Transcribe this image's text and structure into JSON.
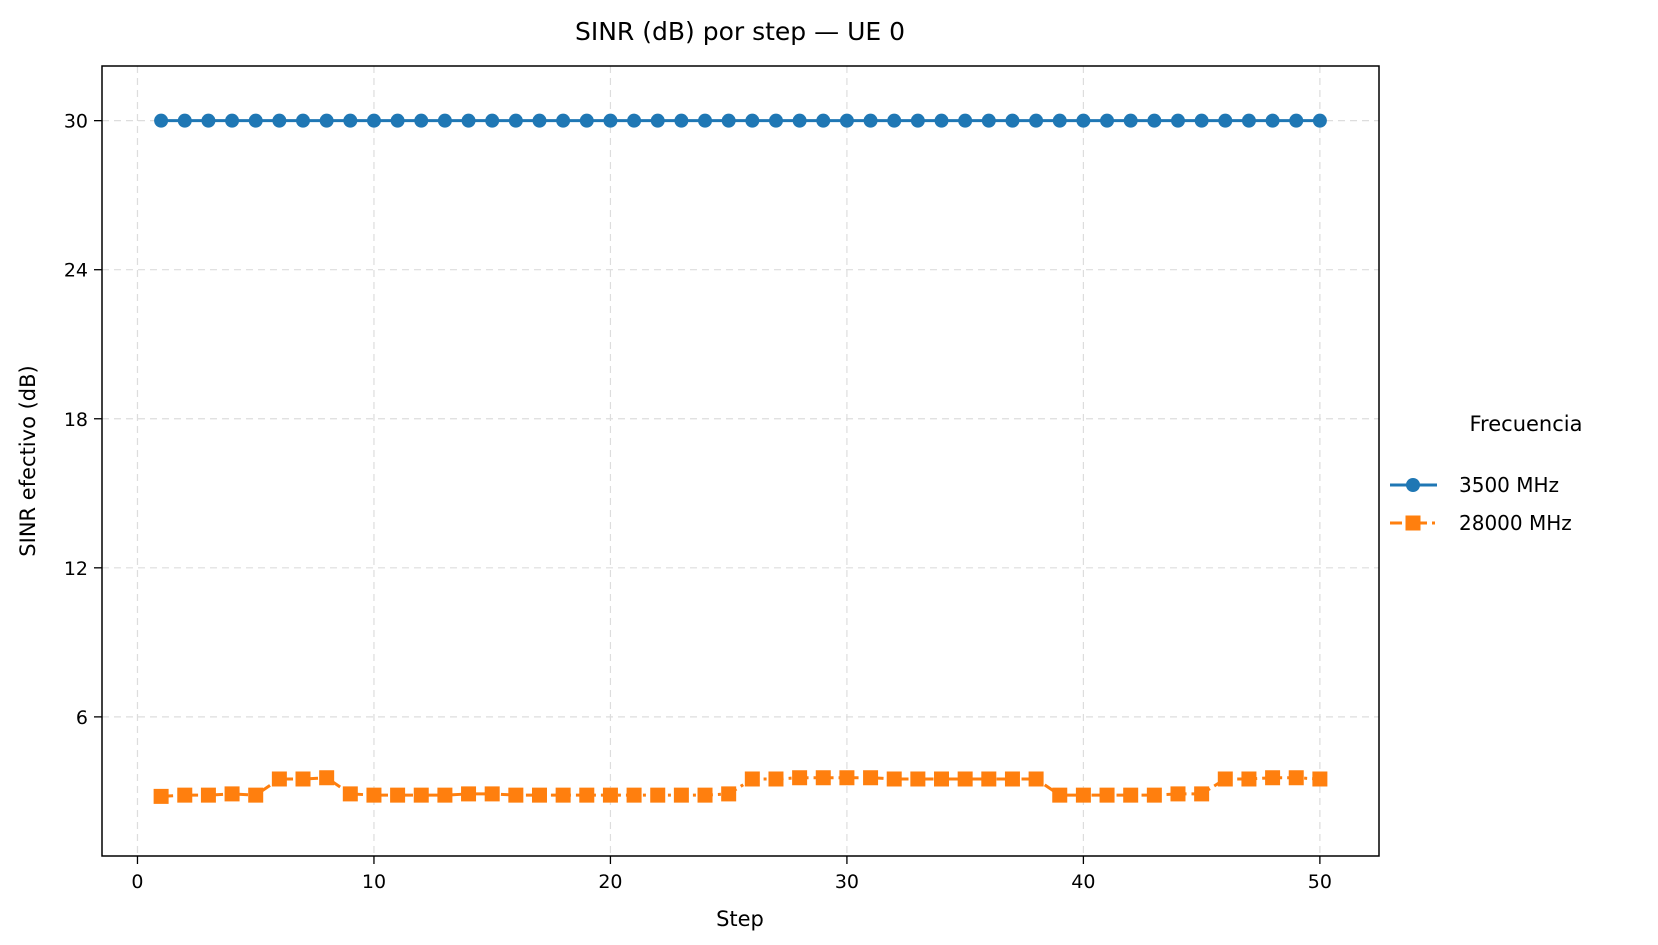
{
  "chart_data": {
    "type": "line",
    "title": "SINR (dB) por step — UE 0",
    "xlabel": "Step",
    "ylabel": "SINR efectivo (dB)",
    "xlim": [
      -1.5,
      52.5
    ],
    "ylim": [
      0.4,
      32.2
    ],
    "xticks": [
      0,
      10,
      20,
      30,
      40,
      50
    ],
    "yticks": [
      6,
      12,
      18,
      24,
      30
    ],
    "grid": true,
    "legend": {
      "title": "Frecuencia",
      "placement": "outside-right"
    },
    "x": [
      1,
      2,
      3,
      4,
      5,
      6,
      7,
      8,
      9,
      10,
      11,
      12,
      13,
      14,
      15,
      16,
      17,
      18,
      19,
      20,
      21,
      22,
      23,
      24,
      25,
      26,
      27,
      28,
      29,
      30,
      31,
      32,
      33,
      34,
      35,
      36,
      37,
      38,
      39,
      40,
      41,
      42,
      43,
      44,
      45,
      46,
      47,
      48,
      49,
      50
    ],
    "series": [
      {
        "name": "3500 MHz",
        "color": "#1f77b4",
        "marker": "circle",
        "linestyle": "solid",
        "values": [
          30,
          30,
          30,
          30,
          30,
          30,
          30,
          30,
          30,
          30,
          30,
          30,
          30,
          30,
          30,
          30,
          30,
          30,
          30,
          30,
          30,
          30,
          30,
          30,
          30,
          30,
          30,
          30,
          30,
          30,
          30,
          30,
          30,
          30,
          30,
          30,
          30,
          30,
          30,
          30,
          30,
          30,
          30,
          30,
          30,
          30,
          30,
          30,
          30,
          30
        ]
      },
      {
        "name": "28000 MHz",
        "color": "#ff7f0e",
        "marker": "square",
        "linestyle": "dashdot",
        "values": [
          2.8,
          2.85,
          2.85,
          2.9,
          2.85,
          3.5,
          3.5,
          3.55,
          2.9,
          2.85,
          2.85,
          2.85,
          2.85,
          2.9,
          2.9,
          2.85,
          2.85,
          2.85,
          2.85,
          2.85,
          2.85,
          2.85,
          2.85,
          2.85,
          2.9,
          3.5,
          3.5,
          3.55,
          3.55,
          3.55,
          3.55,
          3.5,
          3.5,
          3.5,
          3.5,
          3.5,
          3.5,
          3.5,
          2.85,
          2.85,
          2.85,
          2.85,
          2.85,
          2.9,
          2.9,
          3.5,
          3.5,
          3.55,
          3.55,
          3.5
        ]
      }
    ]
  }
}
